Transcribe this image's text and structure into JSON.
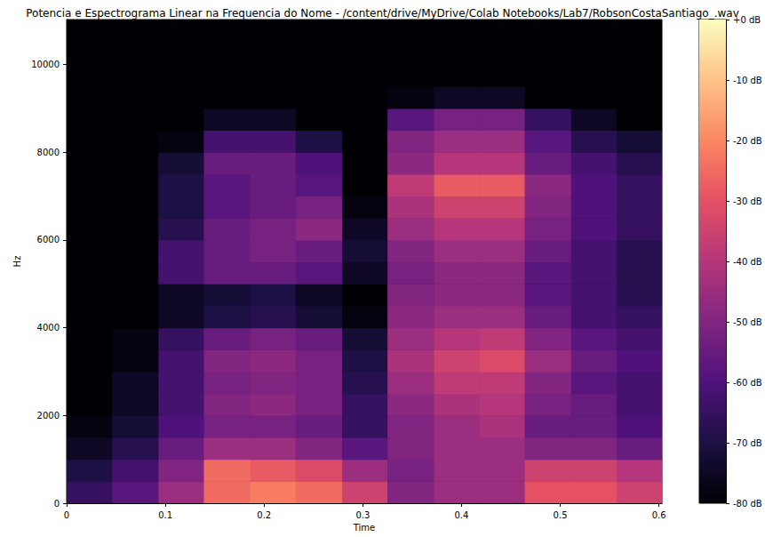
{
  "chart_data": {
    "type": "heatmap",
    "title": "Potencia e Espectrograma Linear na Frequencia do Nome - /content/drive/MyDrive/Colab Notebooks/Lab7/RobsonCostaSantiago_.wav",
    "x_label": "Time",
    "y_label": "Hz",
    "xlim": [
      0,
      0.603
    ],
    "xticks": [
      0,
      0.1,
      0.2,
      0.3,
      0.4,
      0.5,
      0.6
    ],
    "ylim": [
      0,
      11025
    ],
    "yticks": [
      0,
      2000,
      4000,
      6000,
      8000,
      10000
    ],
    "time_edges": [
      0,
      0.046,
      0.093,
      0.139,
      0.186,
      0.232,
      0.279,
      0.325,
      0.372,
      0.418,
      0.464,
      0.511,
      0.557,
      0.603
    ],
    "freq_edges": [
      0,
      500,
      1000,
      1500,
      2000,
      2500,
      3000,
      3500,
      4000,
      4500,
      5000,
      5500,
      6000,
      6500,
      7000,
      7500,
      8000,
      8500,
      9000,
      9500,
      10000,
      10500,
      11025
    ],
    "cells": [
      [
        -65,
        -58,
        -45,
        -25,
        -22,
        -25,
        -35,
        -50,
        -45,
        -45,
        -30,
        -30,
        -35
      ],
      [
        -70,
        -62,
        -50,
        -25,
        -28,
        -32,
        -45,
        -52,
        -45,
        -45,
        -35,
        -35,
        -40
      ],
      [
        -75,
        -68,
        -55,
        -45,
        -45,
        -50,
        -58,
        -50,
        -45,
        -45,
        -50,
        -50,
        -55
      ],
      [
        -78,
        -72,
        -60,
        -52,
        -52,
        -55,
        -65,
        -50,
        -45,
        -42,
        -55,
        -55,
        -60
      ],
      [
        -80,
        -75,
        -62,
        -50,
        -48,
        -52,
        -65,
        -48,
        -42,
        -40,
        -52,
        -55,
        -62
      ],
      [
        -80,
        -75,
        -62,
        -52,
        -50,
        -52,
        -68,
        -45,
        -38,
        -38,
        -50,
        -58,
        -62
      ],
      [
        -80,
        -78,
        -62,
        -50,
        -48,
        -52,
        -70,
        -42,
        -35,
        -32,
        -45,
        -55,
        -60
      ],
      [
        -80,
        -78,
        -65,
        -55,
        -52,
        -55,
        -72,
        -45,
        -40,
        -38,
        -50,
        -58,
        -62
      ],
      [
        -80,
        -80,
        -75,
        -70,
        -68,
        -72,
        -78,
        -48,
        -45,
        -45,
        -55,
        -62,
        -65
      ],
      [
        -80,
        -80,
        -75,
        -72,
        -70,
        -75,
        -80,
        -50,
        -48,
        -48,
        -58,
        -62,
        -68
      ],
      [
        -80,
        -80,
        -62,
        -55,
        -55,
        -58,
        -75,
        -52,
        -48,
        -48,
        -58,
        -62,
        -68
      ],
      [
        -80,
        -80,
        -62,
        -55,
        -52,
        -55,
        -72,
        -50,
        -45,
        -45,
        -55,
        -62,
        -68
      ],
      [
        -80,
        -80,
        -68,
        -55,
        -52,
        -48,
        -75,
        -45,
        -40,
        -40,
        -52,
        -60,
        -65
      ],
      [
        -80,
        -80,
        -70,
        -58,
        -55,
        -52,
        -78,
        -42,
        -35,
        -35,
        -50,
        -60,
        -65
      ],
      [
        -80,
        -80,
        -70,
        -58,
        -55,
        -58,
        -80,
        -38,
        -28,
        -28,
        -48,
        -60,
        -65
      ],
      [
        -80,
        -80,
        -72,
        -55,
        -55,
        -60,
        -80,
        -48,
        -40,
        -40,
        -55,
        -62,
        -68
      ],
      [
        -80,
        -80,
        -78,
        -62,
        -62,
        -70,
        -80,
        -50,
        -45,
        -45,
        -58,
        -68,
        -72
      ],
      [
        -80,
        -80,
        -80,
        -75,
        -75,
        -80,
        -80,
        -58,
        -52,
        -52,
        -65,
        -75,
        -80
      ],
      [
        -80,
        -80,
        -80,
        -80,
        -80,
        -80,
        -80,
        -78,
        -75,
        -75,
        -80,
        -80,
        -80
      ],
      [
        -80,
        -80,
        -80,
        -80,
        -80,
        -80,
        -80,
        -80,
        -80,
        -80,
        -80,
        -80,
        -80
      ],
      [
        -80,
        -80,
        -80,
        -80,
        -80,
        -80,
        -80,
        -80,
        -80,
        -80,
        -80,
        -80,
        -80
      ],
      [
        -80,
        -80,
        -80,
        -80,
        -80,
        -80,
        -80,
        -80,
        -80,
        -80,
        -80,
        -80,
        -80
      ]
    ],
    "colorbar": {
      "range": [
        -80,
        0
      ],
      "ticks": [
        {
          "value": 0,
          "label": "+0 dB"
        },
        {
          "value": -10,
          "label": "-10 dB"
        },
        {
          "value": -20,
          "label": "-20 dB"
        },
        {
          "value": -30,
          "label": "-30 dB"
        },
        {
          "value": -40,
          "label": "-40 dB"
        },
        {
          "value": -50,
          "label": "-50 dB"
        },
        {
          "value": -60,
          "label": "-60 dB"
        },
        {
          "value": -70,
          "label": "-70 dB"
        },
        {
          "value": -80,
          "label": "-80 dB"
        }
      ]
    }
  }
}
